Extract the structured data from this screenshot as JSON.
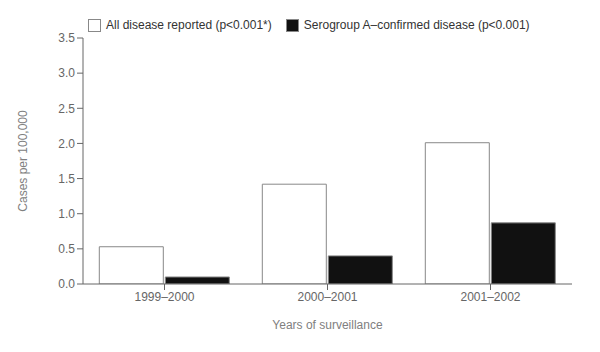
{
  "chart_data": {
    "type": "bar",
    "categories": [
      "1999–2000",
      "2000–2001",
      "2001–2002"
    ],
    "series": [
      {
        "name": "All disease reported (p<0.001*)",
        "color": "#ffffff",
        "values": [
          0.53,
          1.42,
          2.01
        ]
      },
      {
        "name": "Serogroup A–confirmed disease (p<0.001)",
        "color": "#111111",
        "values": [
          0.1,
          0.4,
          0.87
        ]
      }
    ],
    "xlabel": "Years of surveillance",
    "ylabel": "Cases per 100,000",
    "ylim": [
      0,
      3.5
    ],
    "yticks": [
      {
        "value": 0,
        "label": "0.0"
      },
      0.5,
      {
        "value": 1.0,
        "label": "1.0"
      },
      1.5,
      {
        "value": 2.0,
        "label": "2.0"
      },
      2.5,
      {
        "value": 3.0,
        "label": "3.0"
      },
      3.5
    ],
    "grid": false,
    "legend": "upper left"
  }
}
